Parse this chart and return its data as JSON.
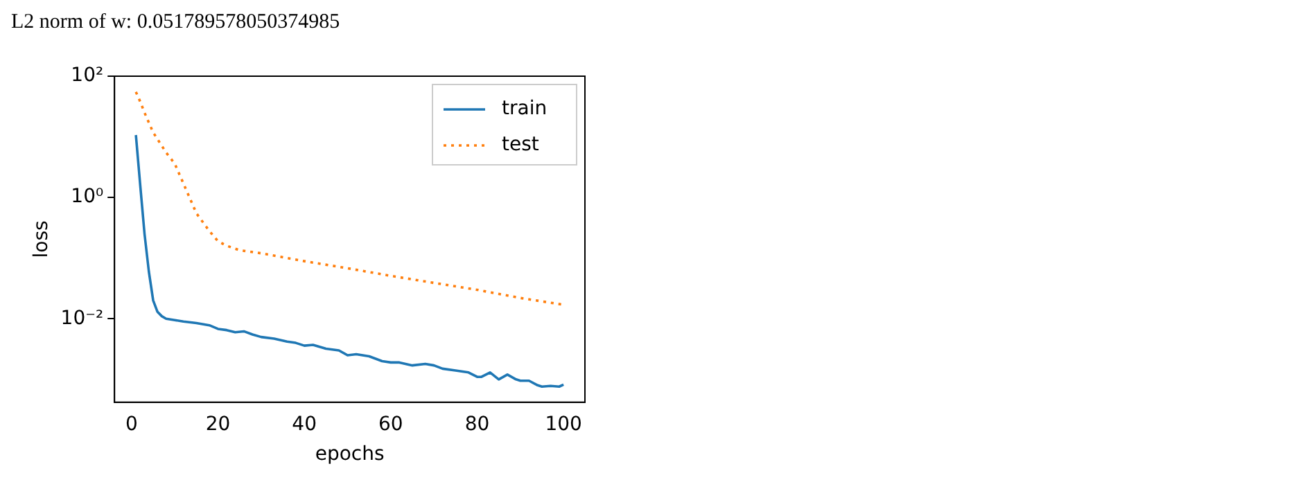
{
  "chart_data": {
    "type": "line",
    "title": "L2 norm of w: 0.051789578050374985",
    "xlabel": "epochs",
    "ylabel": "loss",
    "log": "y",
    "grid": false,
    "legend": "top right",
    "marker": "none",
    "xlim": [
      -3.95,
      104.95
    ],
    "xticks": [
      0,
      20,
      40,
      60,
      80,
      100
    ],
    "ylim": [
      0.00042,
      100
    ],
    "yticks": [
      {
        "value": 100,
        "label": "10²"
      },
      {
        "value": 1,
        "label": "10⁰"
      },
      {
        "value": 0.01,
        "label": "10⁻²"
      }
    ],
    "series": [
      {
        "name": "train",
        "color": "#1f77b4",
        "line_style": "solid",
        "x": [
          1,
          2,
          3,
          4,
          5,
          6,
          7,
          8,
          10,
          12,
          15,
          18,
          20,
          22,
          24,
          26,
          28,
          30,
          33,
          36,
          38,
          40,
          42,
          45,
          48,
          50,
          52,
          55,
          58,
          60,
          62,
          65,
          68,
          70,
          72,
          75,
          78,
          80,
          81,
          83,
          85,
          87,
          89,
          90,
          92,
          94,
          95,
          97,
          99,
          100
        ],
        "values": [
          10.7,
          1.6,
          0.25,
          0.06,
          0.02,
          0.013,
          0.011,
          0.01,
          0.0095,
          0.009,
          0.0085,
          0.0078,
          0.0068,
          0.0065,
          0.006,
          0.0062,
          0.0055,
          0.005,
          0.0047,
          0.0042,
          0.004,
          0.0036,
          0.0037,
          0.0032,
          0.003,
          0.0025,
          0.0026,
          0.0024,
          0.002,
          0.0019,
          0.0019,
          0.0017,
          0.0018,
          0.0017,
          0.0015,
          0.0014,
          0.0013,
          0.0011,
          0.0011,
          0.0013,
          0.001,
          0.0012,
          0.001,
          0.00095,
          0.00095,
          0.0008,
          0.00076,
          0.00078,
          0.00076,
          0.00082
        ]
      },
      {
        "name": "test",
        "color": "#ff7f0e",
        "line_style": "dotted",
        "x": [
          1,
          2,
          3,
          5,
          8,
          10,
          12,
          15,
          18,
          20,
          22,
          25,
          30,
          40,
          50,
          60,
          70,
          80,
          90,
          100
        ],
        "values": [
          55,
          38,
          25,
          11.8,
          5.5,
          3.6,
          1.7,
          0.55,
          0.28,
          0.19,
          0.16,
          0.135,
          0.12,
          0.089,
          0.068,
          0.051,
          0.039,
          0.03,
          0.022,
          0.017
        ]
      }
    ]
  }
}
